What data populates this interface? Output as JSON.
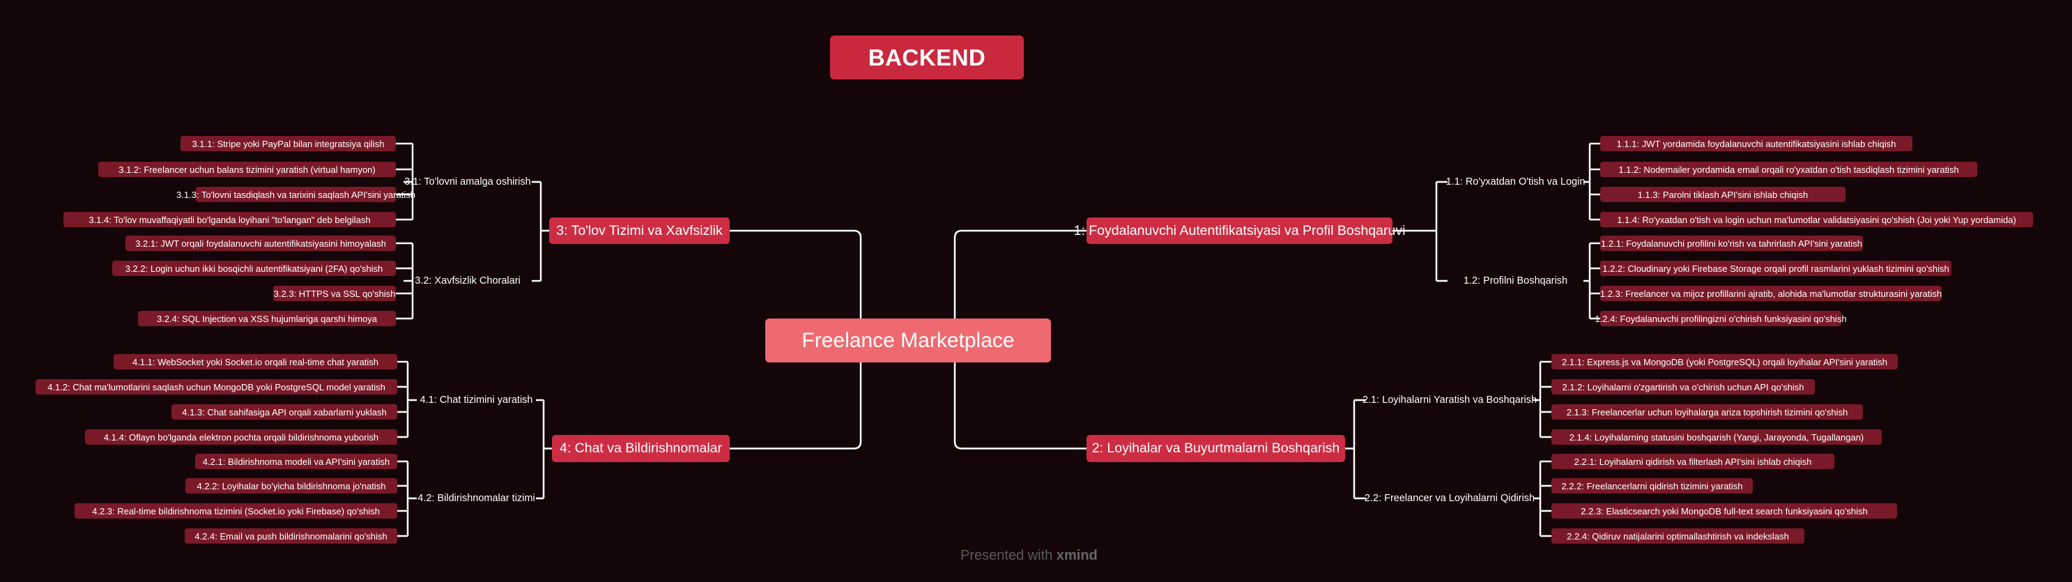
{
  "title": "BACKEND",
  "root": "Freelance Marketplace",
  "footer": {
    "prefix": "Presented with",
    "brand": "xmind"
  },
  "colors": {
    "background": "#140509",
    "title": "#c9293f",
    "root": "#ee6a70",
    "main": "#cd2d43",
    "leaf": "#7a1a28",
    "line": "#ffffff"
  },
  "branches": [
    {
      "label": "1: Foydalanuvchi Autentifikatsiyasi va Profil Boshqaruvi",
      "subs": [
        {
          "label": "1.1: Ro'yxatdan O'tish va Login",
          "leaves": [
            "1.1.1: JWT yordamida foydalanuvchi autentifikatsiyasini ishlab chiqish",
            "1.1.2: Nodemailer yordamida email orqali ro'yxatdan o'tish tasdiqlash tizimini yaratish",
            "1.1.3: Parolni tiklash API'sini ishlab chiqish",
            "1.1.4: Ro'yxatdan o'tish va login uchun ma'lumotlar validatsiyasini qo'shish (Joi yoki Yup yordamida)"
          ]
        },
        {
          "label": "1.2: Profilni Boshqarish",
          "leaves": [
            "1.2.1: Foydalanuvchi profilini ko'rish va tahrirlash API'sini yaratish",
            "1.2.2: Cloudinary yoki Firebase Storage orqali profil rasmlarini yuklash tizimini qo'shish",
            "1.2.3: Freelancer va mijoz profillarini ajratib, alohida ma'lumotlar strukturasini yaratish",
            "1.2.4: Foydalanuvchi profilingizni o'chirish funksiyasini qo'shish"
          ]
        }
      ]
    },
    {
      "label": "2: Loyihalar va Buyurtmalarni Boshqarish",
      "subs": [
        {
          "label": "2.1: Loyihalarni Yaratish va Boshqarish",
          "leaves": [
            "2.1.1: Express.js va MongoDB (yoki PostgreSQL) orqali loyihalar API'sini yaratish",
            "2.1.2: Loyihalarni o'zgartirish va o'chirish uchun API qo'shish",
            "2.1.3: Freelancerlar uchun loyihalarga ariza topshirish tizimini qo'shish",
            "2.1.4: Loyihalarning statusini boshqarish (Yangi, Jarayonda, Tugallangan)"
          ]
        },
        {
          "label": "2.2: Freelancer va Loyihalarni Qidirish",
          "leaves": [
            "2.2.1: Loyihalarni qidirish va filterlash API'sini ishlab chiqish",
            "2.2.2: Freelancerlarni qidirish tizimini yaratish",
            "2.2.3: Elasticsearch yoki MongoDB full-text search funksiyasini qo'shish",
            "2.2.4: Qidiruv natijalarini optimallashtirish va indekslash"
          ]
        }
      ]
    },
    {
      "label": "3: To'lov Tizimi va Xavfsizlik",
      "subs": [
        {
          "label": "3.1: To'lovni amalga oshirish",
          "leaves": [
            "3.1.1: Stripe yoki PayPal bilan integratsiya qilish",
            "3.1.2: Freelancer uchun balans tizimini yaratish (virtual hamyon)",
            "3.1.3: To'lovni tasdiqlash va tarixini saqlash API'sini yaratish",
            "3.1.4: To'lov muvaffaqiyatli bo'lganda loyihani \"to'langan\" deb belgilash"
          ]
        },
        {
          "label": "3.2: Xavfsizlik Choralari",
          "leaves": [
            "3.2.1: JWT orqali foydalanuvchi autentifikatsiyasini himoyalash",
            "3.2.2: Login uchun ikki bosqichli autentifikatsiyani (2FA) qo'shish",
            "3.2.3: HTTPS va SSL qo'shish",
            "3.2.4: SQL Injection va XSS hujumlariga qarshi himoya"
          ]
        }
      ]
    },
    {
      "label": "4: Chat va Bildirishnomalar",
      "subs": [
        {
          "label": "4.1: Chat tizimini yaratish",
          "leaves": [
            "4.1.1: WebSocket yoki Socket.io orqali real-time chat yaratish",
            "4.1.2: Chat ma'lumotlarini saqlash uchun MongoDB yoki PostgreSQL model yaratish",
            "4.1.3: Chat sahifasiga API orqali xabarlarni yuklash",
            "4.1.4: Oflayn bo'lganda elektron pochta orqali bildirishnoma yuborish"
          ]
        },
        {
          "label": "4.2: Bildirishnomalar tizimi",
          "leaves": [
            "4.2.1: Bildirishnoma modeli va API'sini yaratish",
            "4.2.2: Loyihalar bo'yicha bildirishnoma jo'natish",
            "4.2.3: Real-time bildirishnoma tizimini (Socket.io yoki Firebase) qo'shish",
            "4.2.4: Email va push bildirishnomalarini qo'shish"
          ]
        }
      ]
    }
  ]
}
